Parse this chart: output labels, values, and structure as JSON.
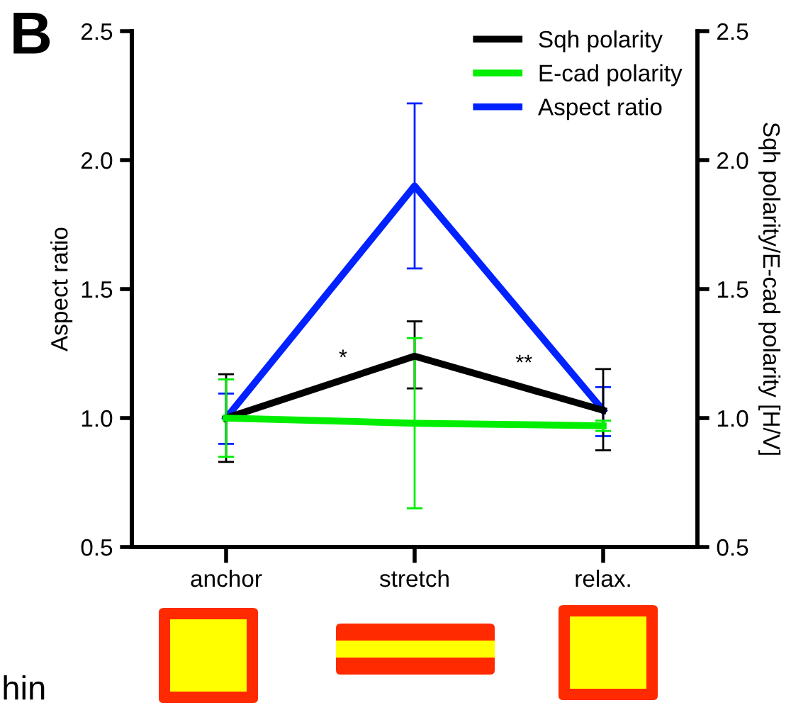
{
  "chart_data": {
    "type": "line",
    "title": "B",
    "categories": [
      "anchor",
      "stretch",
      "relax."
    ],
    "ylabel": "Aspect ratio",
    "y2label": "Sqh polarity/E-cad polarity [H/V]",
    "series": [
      {
        "name": "Sqh polarity",
        "color": "#000000",
        "axis": "y2",
        "values": [
          1.0,
          1.24,
          1.03
        ],
        "errors": [
          [
            0.83,
            1.17
          ],
          [
            1.115,
            1.375
          ],
          [
            0.875,
            1.19
          ]
        ]
      },
      {
        "name": "E-cad polarity",
        "color": "#00ee00",
        "axis": "y2",
        "values": [
          1.0,
          0.98,
          0.97
        ],
        "errors": [
          [
            0.85,
            1.15
          ],
          [
            0.65,
            1.31
          ],
          [
            0.95,
            0.99
          ]
        ]
      },
      {
        "name": "Aspect ratio",
        "color": "#0022ff",
        "axis": "y",
        "values": [
          1.0,
          1.9,
          1.03
        ],
        "errors": [
          [
            0.9,
            1.095
          ],
          [
            1.58,
            2.22
          ],
          [
            0.93,
            1.12
          ]
        ]
      }
    ],
    "ylim": [
      0.5,
      2.5
    ],
    "yticks": [
      0.5,
      {
        "value": 1.0,
        "label": "1.0"
      },
      1.5,
      {
        "value": 2.0,
        "label": "2.0"
      },
      2.5
    ],
    "y2lim": [
      0.5,
      2.5
    ],
    "y2ticks": [
      0.5,
      {
        "value": 1.0,
        "label": "1.0"
      },
      1.5,
      {
        "value": 2.0,
        "label": "2.0"
      },
      2.5
    ],
    "annotations": [
      "*",
      "**",
      "hin"
    ],
    "legend": "top right",
    "grid": false,
    "marker": "none",
    "line_style": "solid"
  }
}
